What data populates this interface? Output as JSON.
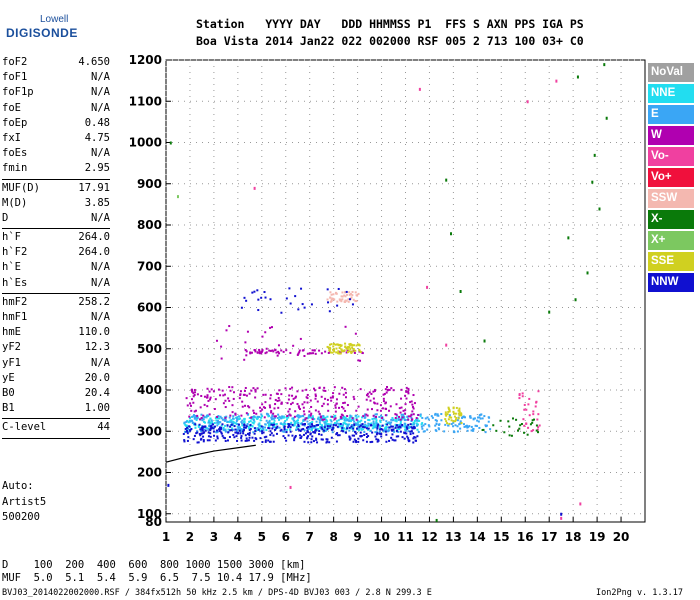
{
  "logo": {
    "line1": "Lowell",
    "line2": "DIGISONDE"
  },
  "header": {
    "line1": "Station   YYYY DAY   DDD HHMMSS P1  FFS S AXN PPS IGA PS",
    "line2": "Boa Vista 2014 Jan22 022 002000 RSF 005 2 713 100 03+ C0"
  },
  "params": [
    {
      "name": "foF2",
      "value": "4.650"
    },
    {
      "name": "foF1",
      "value": "N/A"
    },
    {
      "name": "foF1p",
      "value": "N/A"
    },
    {
      "name": "foE",
      "value": "N/A"
    },
    {
      "name": "foEp",
      "value": "0.48"
    },
    {
      "name": "fxI",
      "value": "4.75"
    },
    {
      "name": "foEs",
      "value": "N/A"
    },
    {
      "name": "fmin",
      "value": "2.95"
    },
    {
      "sep": true
    },
    {
      "name": "MUF(D)",
      "value": "17.91"
    },
    {
      "name": "M(D)",
      "value": "3.85"
    },
    {
      "name": "D",
      "value": "N/A"
    },
    {
      "sep": true
    },
    {
      "name": "h`F",
      "value": "264.0"
    },
    {
      "name": "h`F2",
      "value": "264.0"
    },
    {
      "name": "h`E",
      "value": "N/A"
    },
    {
      "name": "h`Es",
      "value": "N/A"
    },
    {
      "sep": true
    },
    {
      "name": "hmF2",
      "value": "258.2"
    },
    {
      "name": "hmF1",
      "value": "N/A"
    },
    {
      "name": "hmE",
      "value": "110.0"
    },
    {
      "name": "yF2",
      "value": "12.3"
    },
    {
      "name": "yF1",
      "value": "N/A"
    },
    {
      "name": "yE",
      "value": "20.0"
    },
    {
      "name": "B0",
      "value": "20.4"
    },
    {
      "name": "B1",
      "value": "1.00"
    },
    {
      "sep": true
    },
    {
      "name": "C-level",
      "value": "44"
    },
    {
      "sep": true
    }
  ],
  "auto": {
    "line1": "Auto:",
    "line2": "Artist5",
    "line3": "500200"
  },
  "footer": {
    "line1": "D    100  200  400  600  800 1000 1500 3000 [km]",
    "line2": "MUF  5.0  5.1  5.4  5.9  6.5  7.5 10.4 17.9 [MHz]",
    "line3": "BVJ03_2014022002000.RSF / 384fx512h 50 kHz 2.5 km / DPS-4D BVJ03 003 / 2.8 N 299.3 E",
    "version": "Ion2Png v. 1.3.17"
  },
  "legend": [
    {
      "label": "NoVal",
      "color": "#a0a0a0"
    },
    {
      "label": "NNE",
      "color": "#22ddf0"
    },
    {
      "label": "E",
      "color": "#3aa6f5"
    },
    {
      "label": "W",
      "color": "#b000b0"
    },
    {
      "label": "Vo-",
      "color": "#f040a0"
    },
    {
      "label": "Vo+",
      "color": "#f0103c"
    },
    {
      "label": "SSW",
      "color": "#f4b8b0"
    },
    {
      "label": "X-",
      "color": "#0a7a0a"
    },
    {
      "label": "X+",
      "color": "#7cc860"
    },
    {
      "label": "SSE",
      "color": "#d0d020"
    },
    {
      "label": "NNW",
      "color": "#1010d0"
    }
  ],
  "chart_data": {
    "type": "scatter",
    "title": "",
    "xlabel": "",
    "ylabel": "",
    "xlim": [
      1,
      20
    ],
    "ylim": [
      80,
      1200
    ],
    "x_ticks": [
      1,
      2,
      3,
      4,
      5,
      6,
      7,
      8,
      9,
      10,
      11,
      12,
      13,
      14,
      15,
      16,
      17,
      18,
      19,
      20
    ],
    "y_ticks": [
      100,
      200,
      300,
      400,
      500,
      600,
      700,
      800,
      900,
      1000,
      1100,
      1200
    ],
    "y_min_label": "80",
    "grid": "dotted",
    "trace": [
      [
        1.0,
        225
      ],
      [
        2.0,
        240
      ],
      [
        3.0,
        252
      ],
      [
        4.0,
        260
      ],
      [
        4.75,
        266
      ]
    ],
    "clusters": [
      {
        "series": "NNE",
        "x": [
          1.7,
          11.7
        ],
        "y": [
          305,
          340
        ],
        "n": 420
      },
      {
        "series": "E",
        "x": [
          1.7,
          14.5
        ],
        "y": [
          300,
          345
        ],
        "n": 420
      },
      {
        "series": "NNW",
        "x": [
          1.7,
          11.5
        ],
        "y": [
          275,
          320
        ],
        "n": 380
      },
      {
        "series": "W",
        "x": [
          1.8,
          11.5
        ],
        "y": [
          330,
          410
        ],
        "n": 320
      },
      {
        "series": "W",
        "x": [
          4.0,
          9.3
        ],
        "y": [
          490,
          500
        ],
        "n": 60
      },
      {
        "series": "SSE",
        "x": [
          7.7,
          9.1
        ],
        "y": [
          490,
          515
        ],
        "n": 70
      },
      {
        "series": "SSW",
        "x": [
          7.7,
          9.0
        ],
        "y": [
          615,
          640
        ],
        "n": 50
      },
      {
        "series": "SSE",
        "x": [
          12.6,
          13.3
        ],
        "y": [
          320,
          360
        ],
        "n": 40
      },
      {
        "series": "Vo-",
        "x": [
          15.6,
          16.6
        ],
        "y": [
          300,
          400
        ],
        "n": 30
      },
      {
        "series": "X-",
        "x": [
          14.0,
          16.5
        ],
        "y": [
          290,
          340
        ],
        "n": 25
      },
      {
        "series": "NNW",
        "x": [
          4.0,
          9.0
        ],
        "y": [
          580,
          650
        ],
        "n": 30
      },
      {
        "series": "W",
        "x": [
          3.0,
          9.5
        ],
        "y": [
          470,
          560
        ],
        "n": 25
      }
    ],
    "points": [
      {
        "x": 17.3,
        "y": 1150,
        "series": "Vo-"
      },
      {
        "x": 18.2,
        "y": 1160,
        "series": "X-"
      },
      {
        "x": 19.3,
        "y": 1190,
        "series": "X-"
      },
      {
        "x": 16.1,
        "y": 1100,
        "series": "Vo-"
      },
      {
        "x": 18.9,
        "y": 970,
        "series": "X-"
      },
      {
        "x": 18.8,
        "y": 905,
        "series": "X-"
      },
      {
        "x": 12.7,
        "y": 910,
        "series": "X-"
      },
      {
        "x": 19.1,
        "y": 840,
        "series": "X-"
      },
      {
        "x": 12.9,
        "y": 780,
        "series": "X-"
      },
      {
        "x": 17.8,
        "y": 770,
        "series": "X-"
      },
      {
        "x": 18.6,
        "y": 685,
        "series": "X-"
      },
      {
        "x": 13.3,
        "y": 640,
        "series": "X-"
      },
      {
        "x": 11.9,
        "y": 650,
        "series": "Vo-"
      },
      {
        "x": 18.1,
        "y": 620,
        "series": "X-"
      },
      {
        "x": 17.0,
        "y": 590,
        "series": "X-"
      },
      {
        "x": 14.3,
        "y": 520,
        "series": "X-"
      },
      {
        "x": 12.7,
        "y": 510,
        "series": "Vo-"
      },
      {
        "x": 19.4,
        "y": 1060,
        "series": "X-"
      },
      {
        "x": 11.6,
        "y": 1130,
        "series": "Vo-"
      },
      {
        "x": 4.7,
        "y": 890,
        "series": "Vo-"
      },
      {
        "x": 1.5,
        "y": 870,
        "series": "X+"
      },
      {
        "x": 1.2,
        "y": 1000,
        "series": "X-"
      },
      {
        "x": 17.5,
        "y": 100,
        "series": "NNW"
      },
      {
        "x": 17.5,
        "y": 90,
        "series": "Vo-"
      },
      {
        "x": 18.3,
        "y": 125,
        "series": "Vo-"
      },
      {
        "x": 12.3,
        "y": 85,
        "series": "X-"
      },
      {
        "x": 6.2,
        "y": 165,
        "series": "Vo-"
      },
      {
        "x": 1.1,
        "y": 170,
        "series": "NNW"
      }
    ]
  }
}
